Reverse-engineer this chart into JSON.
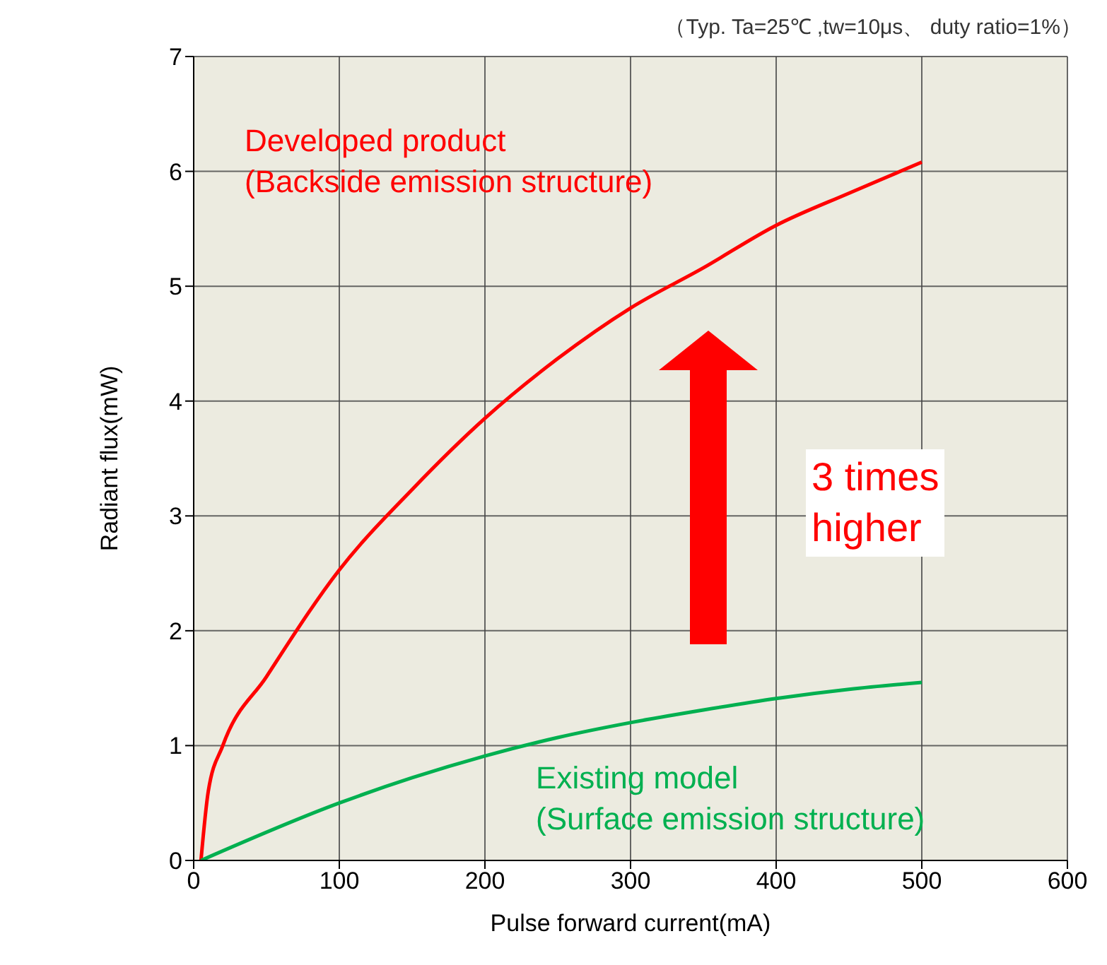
{
  "chart_data": {
    "type": "line",
    "subtitle": "（Typ. Ta=25℃ ,tw=10μs、 duty ratio=1%）",
    "xlabel": "Pulse forward current(mA)",
    "ylabel": "Radiant flux(mW)",
    "annotations": [
      "3 times\nhigher"
    ],
    "series": [
      {
        "name": "Developed product\n(Backside emission structure)",
        "color": "#ff0000",
        "x": [
          5,
          10,
          20,
          50,
          100,
          150,
          200,
          250,
          300,
          350,
          400,
          450,
          500
        ],
        "values": [
          0,
          0.6,
          1.0,
          1.6,
          2.53,
          3.23,
          3.85,
          4.37,
          4.81,
          5.16,
          5.53,
          5.81,
          6.08
        ]
      },
      {
        "name": "Existing model\n(Surface emission structure)",
        "color": "#00b050",
        "x": [
          5,
          100,
          150,
          200,
          250,
          300,
          350,
          400,
          450,
          500
        ],
        "values": [
          0,
          0.5,
          0.72,
          0.91,
          1.07,
          1.2,
          1.31,
          1.41,
          1.49,
          1.55
        ]
      }
    ],
    "xlim": [
      0,
      600
    ],
    "xticks": [
      0,
      100,
      200,
      300,
      400,
      500,
      600
    ],
    "ylim": [
      0,
      7
    ],
    "yticks": [
      0,
      1,
      2,
      3,
      4,
      5,
      6,
      7
    ],
    "grid": true
  }
}
